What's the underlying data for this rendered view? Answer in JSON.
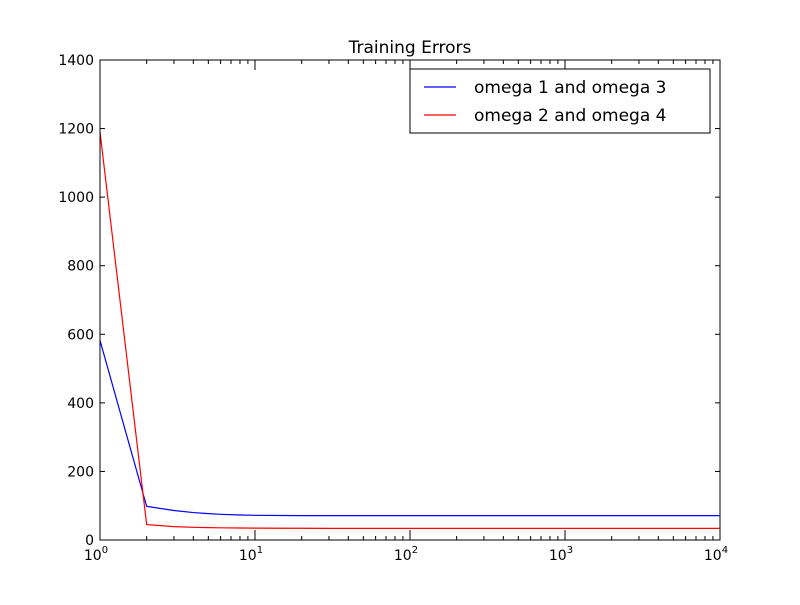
{
  "chart_data": {
    "type": "line",
    "title": "Training Errors",
    "xlabel": "",
    "ylabel": "",
    "x_scale": "log",
    "xlim": [
      1,
      10000
    ],
    "ylim": [
      0,
      1400
    ],
    "x_ticks": [
      {
        "value": 1,
        "base": "10",
        "exp": "0"
      },
      {
        "value": 10,
        "base": "10",
        "exp": "1"
      },
      {
        "value": 100,
        "base": "10",
        "exp": "2"
      },
      {
        "value": 1000,
        "base": "10",
        "exp": "3"
      },
      {
        "value": 10000,
        "base": "10",
        "exp": "4"
      }
    ],
    "y_ticks": [
      {
        "value": 0,
        "label": "0"
      },
      {
        "value": 200,
        "label": "200"
      },
      {
        "value": 400,
        "label": "400"
      },
      {
        "value": 600,
        "label": "600"
      },
      {
        "value": 800,
        "label": "800"
      },
      {
        "value": 1000,
        "label": "1000"
      },
      {
        "value": 1200,
        "label": "1200"
      },
      {
        "value": 1400,
        "label": "1400"
      }
    ],
    "grid": false,
    "legend_position": "top-right",
    "series": [
      {
        "name": "omega 1 and omega 3",
        "color": "#0000ff",
        "x": [
          1,
          2,
          3,
          4,
          5,
          6,
          8,
          10,
          15,
          20,
          30,
          50,
          100,
          1000,
          10000
        ],
        "y": [
          582,
          98,
          86,
          80,
          77,
          75,
          73,
          72,
          71.5,
          71.2,
          71,
          71,
          71,
          71,
          71
        ]
      },
      {
        "name": "omega 2 and omega 4",
        "color": "#ff0000",
        "x": [
          1,
          2,
          3,
          4,
          5,
          6,
          8,
          10,
          15,
          20,
          30,
          50,
          100,
          1000,
          10000
        ],
        "y": [
          1190,
          45,
          39,
          37,
          36,
          35.5,
          35,
          34.6,
          34.3,
          34.2,
          34,
          34,
          34,
          34,
          34
        ]
      }
    ]
  }
}
